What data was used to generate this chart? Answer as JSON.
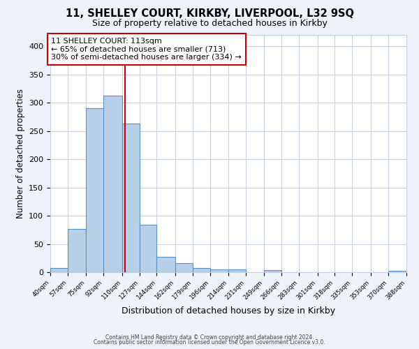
{
  "title": "11, SHELLEY COURT, KIRKBY, LIVERPOOL, L32 9SQ",
  "subtitle": "Size of property relative to detached houses in Kirkby",
  "xlabel": "Distribution of detached houses by size in Kirkby",
  "ylabel": "Number of detached properties",
  "bar_values": [
    8,
    76,
    290,
    312,
    263,
    84,
    27,
    16,
    8,
    5,
    5,
    0,
    4,
    0,
    0,
    0,
    0,
    0,
    0,
    3
  ],
  "bin_edges": [
    40,
    57,
    75,
    92,
    110,
    127,
    144,
    162,
    179,
    196,
    214,
    231,
    249,
    266,
    283,
    301,
    318,
    335,
    353,
    370,
    388
  ],
  "tick_labels": [
    "40sqm",
    "57sqm",
    "75sqm",
    "92sqm",
    "110sqm",
    "127sqm",
    "144sqm",
    "162sqm",
    "179sqm",
    "196sqm",
    "214sqm",
    "231sqm",
    "249sqm",
    "266sqm",
    "283sqm",
    "301sqm",
    "318sqm",
    "335sqm",
    "353sqm",
    "370sqm",
    "388sqm"
  ],
  "bar_color": "#b8cfe8",
  "bar_edge_color": "#5590c8",
  "red_line_x": 113,
  "annotation_line1": "11 SHELLEY COURT: 113sqm",
  "annotation_line2": "← 65% of detached houses are smaller (713)",
  "annotation_line3": "30% of semi-detached houses are larger (334) →",
  "annotation_box_color": "#ffffff",
  "annotation_box_edge": "#cc0000",
  "ylim": [
    0,
    420
  ],
  "yticks": [
    0,
    50,
    100,
    150,
    200,
    250,
    300,
    350,
    400
  ],
  "footer1": "Contains HM Land Registry data © Crown copyright and database right 2024.",
  "footer2": "Contains public sector information licensed under the Open Government Licence v3.0.",
  "bg_color": "#eef2fa",
  "plot_bg_color": "#ffffff",
  "grid_color": "#c5d0e0"
}
